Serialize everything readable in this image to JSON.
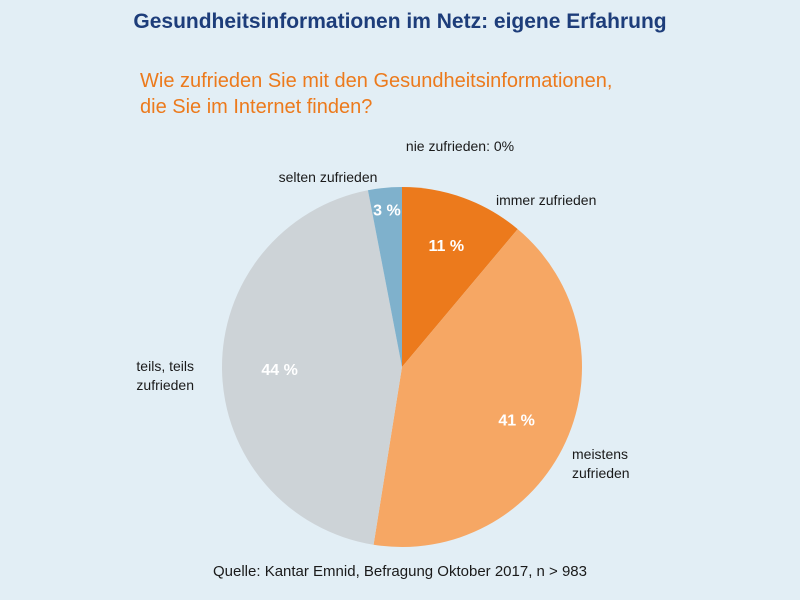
{
  "chart_data": {
    "type": "pie",
    "title": "Gesundheitsinformationen im Netz: eigene Erfahrung",
    "subtitle": [
      "Wie zufrieden Sie mit den Gesundheitsinformationen,",
      "die Sie im Internet finden?"
    ],
    "slices": [
      {
        "label": [
          "nie zufrieden: 0%"
        ],
        "value": 0,
        "value_label": "",
        "color": "#e2eef5"
      },
      {
        "label": [
          "immer zufrieden"
        ],
        "value": 11,
        "value_label": "11 %",
        "color": "#ec7a1c"
      },
      {
        "label": [
          "meistens",
          "zufrieden"
        ],
        "value": 41,
        "value_label": "41 %",
        "color": "#f6a764"
      },
      {
        "label": [
          "teils, teils",
          "zufrieden"
        ],
        "value": 44,
        "value_label": "44 %",
        "color": "#cdd3d7"
      },
      {
        "label": [
          "selten zufrieden"
        ],
        "value": 3,
        "value_label": "3 %",
        "color": "#7fb1cc"
      }
    ],
    "start": "top",
    "direction": "clockwise",
    "source": "Quelle: Kantar Emnid, Befragung Oktober 2017, n > 983"
  }
}
